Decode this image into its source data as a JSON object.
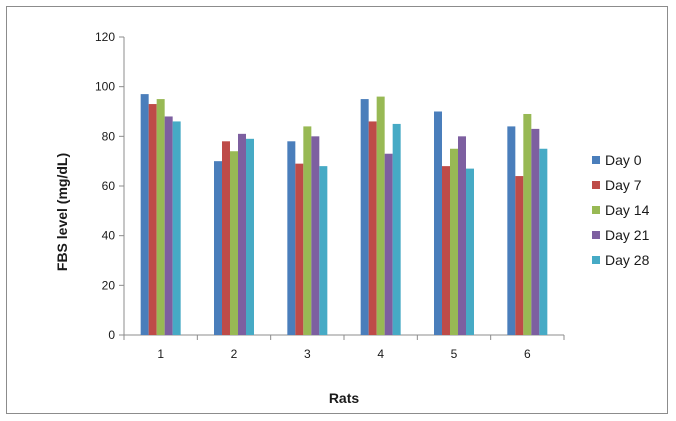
{
  "chart_data": {
    "type": "bar",
    "title": "",
    "xlabel": "Rats",
    "ylabel": "FBS  level (mg/dL)",
    "categories": [
      "1",
      "2",
      "3",
      "4",
      "5",
      "6"
    ],
    "ylim": [
      0,
      120
    ],
    "yticks": [
      0,
      20,
      40,
      60,
      80,
      100,
      120
    ],
    "grid": false,
    "legend_position": "right",
    "series": [
      {
        "name": "Day 0",
        "color": "#4a7ebb",
        "values": [
          97,
          70,
          78,
          95,
          90,
          84
        ]
      },
      {
        "name": "Day 7",
        "color": "#be4b48",
        "values": [
          93,
          78,
          69,
          86,
          68,
          64
        ]
      },
      {
        "name": "Day 14",
        "color": "#98b954",
        "values": [
          95,
          74,
          84,
          96,
          75,
          89
        ]
      },
      {
        "name": "Day 21",
        "color": "#7d5fa0",
        "values": [
          88,
          81,
          80,
          73,
          80,
          83
        ]
      },
      {
        "name": "Day 28",
        "color": "#46aac5",
        "values": [
          86,
          79,
          68,
          85,
          67,
          75
        ]
      }
    ]
  }
}
